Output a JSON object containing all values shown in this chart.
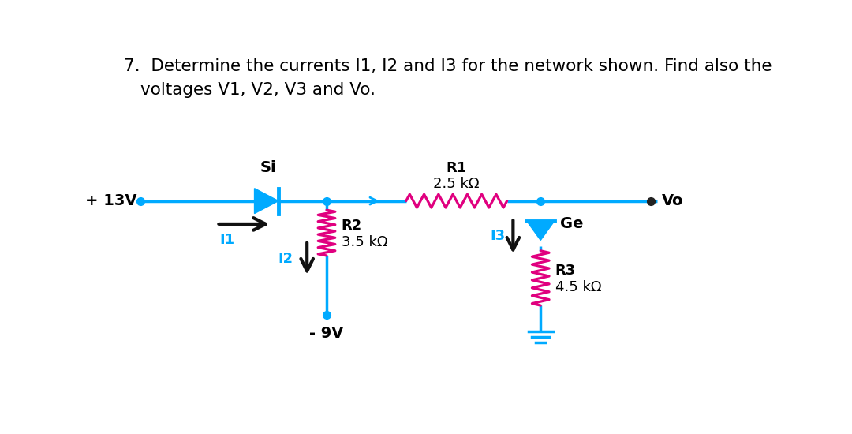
{
  "title_line1": "7.  Determine the currents I1, I2 and I3 for the network shown. Find also the",
  "title_line2": "voltages V1, V2, V3 and Vo.",
  "bg_color": "#ffffff",
  "wire_color": "#00aaff",
  "resistor_color": "#e0007f",
  "diode_color": "#00aaff",
  "arrow_black": "#111111",
  "label_13V": "+ 13V",
  "label_9V": "- 9V",
  "label_Vo": "Vo",
  "label_Si": "Si",
  "label_Ge": "Ge",
  "label_R1": "R1",
  "label_R1_val": "2.5 kΩ",
  "label_R2": "R2",
  "label_R2_val": "3.5 kΩ",
  "label_R3": "R3",
  "label_R3_val": "4.5 kΩ",
  "label_I1": "I1",
  "label_I2": "I2",
  "label_I3": "I3",
  "label_color_I": "#00aaff"
}
